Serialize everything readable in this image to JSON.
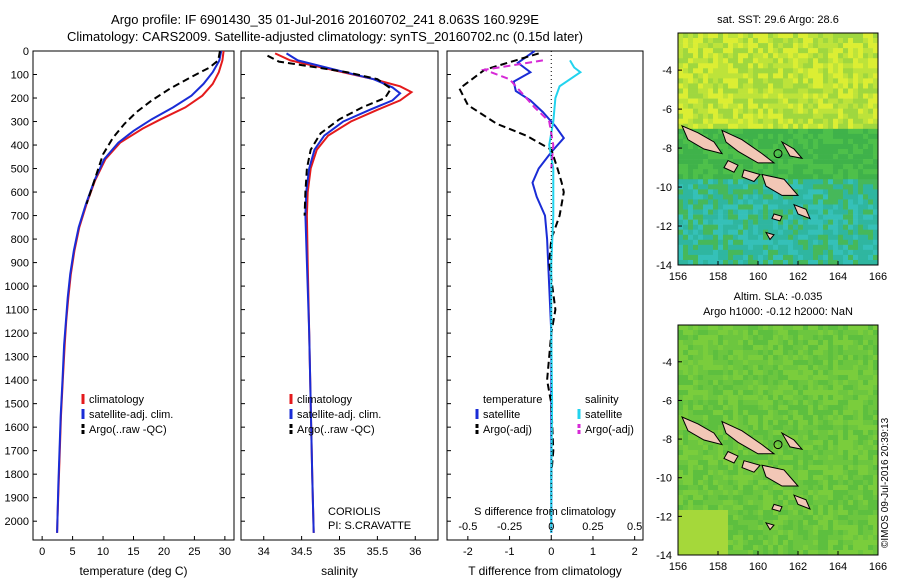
{
  "header": {
    "line1": "Argo profile: IF 6901430_35 01-Jul-2016 20160702_241 8.063S 160.929E",
    "line2": "Climatology: CARS2009. Satellite-adjusted climatology: synTS_20160702.nc (0.15d later)"
  },
  "colors": {
    "climatology": "#e41a1c",
    "satellite": "#1a2cd6",
    "argo": "#000000",
    "sal_satellite": "#22d3ee",
    "sal_argo": "#d62ad6"
  },
  "chart_data": [
    {
      "type": "line",
      "id": "temperature",
      "xlabel": "temperature (deg C)",
      "ylabel": "",
      "xlim": [
        -1.5,
        31.5
      ],
      "ylim": [
        2080,
        0
      ],
      "xticks": [
        0,
        5,
        10,
        15,
        20,
        25,
        30
      ],
      "yticks": [
        0,
        100,
        200,
        300,
        400,
        500,
        600,
        700,
        800,
        900,
        1000,
        1100,
        1200,
        1300,
        1400,
        1500,
        1600,
        1700,
        1800,
        1900,
        2000
      ],
      "legend": [
        "climatology",
        "satellite-adj. clim.",
        "Argo(..raw -QC)"
      ],
      "series": [
        {
          "name": "climatology",
          "style": "red-solid",
          "points": [
            [
              29.8,
              0
            ],
            [
              29.6,
              40
            ],
            [
              29.0,
              90
            ],
            [
              28.0,
              140
            ],
            [
              26.3,
              190
            ],
            [
              23.5,
              240
            ],
            [
              19.5,
              290
            ],
            [
              16.5,
              330
            ],
            [
              12.8,
              390
            ],
            [
              10.4,
              460
            ],
            [
              8.7,
              550
            ],
            [
              7.3,
              650
            ],
            [
              6.1,
              750
            ],
            [
              5.3,
              850
            ],
            [
              4.7,
              950
            ],
            [
              4.3,
              1050
            ],
            [
              3.95,
              1150
            ],
            [
              3.7,
              1250
            ],
            [
              3.4,
              1400
            ],
            [
              3.1,
              1550
            ],
            [
              2.9,
              1700
            ],
            [
              2.7,
              1850
            ],
            [
              2.5,
              2000
            ],
            [
              2.45,
              2050
            ]
          ]
        },
        {
          "name": "satellite-adj. clim.",
          "style": "blue-solid",
          "points": [
            [
              29.4,
              0
            ],
            [
              29.1,
              40
            ],
            [
              28.0,
              90
            ],
            [
              26.5,
              140
            ],
            [
              24.5,
              190
            ],
            [
              21.5,
              240
            ],
            [
              18.0,
              290
            ],
            [
              15.0,
              340
            ],
            [
              12.5,
              390
            ],
            [
              10.2,
              460
            ],
            [
              8.6,
              550
            ],
            [
              7.2,
              650
            ],
            [
              6.0,
              750
            ],
            [
              5.2,
              850
            ],
            [
              4.6,
              950
            ],
            [
              4.2,
              1050
            ],
            [
              3.9,
              1150
            ],
            [
              3.6,
              1250
            ],
            [
              3.35,
              1400
            ],
            [
              3.05,
              1550
            ],
            [
              2.85,
              1700
            ],
            [
              2.65,
              1850
            ],
            [
              2.5,
              2000
            ],
            [
              2.45,
              2050
            ]
          ]
        },
        {
          "name": "Argo(..raw -QC)",
          "style": "black-dashed",
          "points": [
            [
              29.2,
              0
            ],
            [
              28.9,
              40
            ],
            [
              27.5,
              70
            ],
            [
              24.5,
              110
            ],
            [
              21.0,
              160
            ],
            [
              18.0,
              210
            ],
            [
              15.5,
              260
            ],
            [
              13.5,
              310
            ],
            [
              11.6,
              370
            ],
            [
              10.0,
              440
            ],
            [
              8.6,
              550
            ],
            [
              7.3,
              650
            ]
          ]
        }
      ]
    },
    {
      "type": "line",
      "id": "salinity",
      "xlabel": "salinity",
      "xlim": [
        33.7,
        36.3
      ],
      "ylim": [
        2080,
        0
      ],
      "xticks": [
        34,
        34.5,
        35,
        35.5,
        36
      ],
      "legend": [
        "climatology",
        "satellite-adj. clim.",
        "Argo(..raw -QC)"
      ],
      "annotations": [
        "CORIOLIS",
        "PI: S.CRAVATTE"
      ],
      "series": [
        {
          "name": "climatology",
          "style": "red-solid",
          "points": [
            [
              34.15,
              10
            ],
            [
              34.35,
              40
            ],
            [
              34.9,
              80
            ],
            [
              35.45,
              120
            ],
            [
              35.8,
              150
            ],
            [
              35.95,
              175
            ],
            [
              35.8,
              210
            ],
            [
              35.5,
              250
            ],
            [
              35.15,
              300
            ],
            [
              34.85,
              360
            ],
            [
              34.7,
              420
            ],
            [
              34.62,
              500
            ],
            [
              34.58,
              600
            ],
            [
              34.57,
              700
            ],
            [
              34.58,
              900
            ],
            [
              34.6,
              1200
            ],
            [
              34.62,
              1500
            ],
            [
              34.64,
              1800
            ],
            [
              34.66,
              2050
            ]
          ]
        },
        {
          "name": "satellite-adj. clim.",
          "style": "blue-solid",
          "points": [
            [
              34.3,
              10
            ],
            [
              34.45,
              40
            ],
            [
              34.95,
              80
            ],
            [
              35.45,
              120
            ],
            [
              35.7,
              155
            ],
            [
              35.8,
              180
            ],
            [
              35.7,
              210
            ],
            [
              35.4,
              250
            ],
            [
              35.05,
              300
            ],
            [
              34.8,
              360
            ],
            [
              34.67,
              420
            ],
            [
              34.6,
              500
            ],
            [
              34.56,
              600
            ],
            [
              34.55,
              700
            ],
            [
              34.57,
              900
            ],
            [
              34.6,
              1200
            ],
            [
              34.62,
              1500
            ],
            [
              34.64,
              1800
            ],
            [
              34.66,
              2050
            ]
          ]
        },
        {
          "name": "Argo(..raw -QC)",
          "style": "black-dashed",
          "points": [
            [
              34.05,
              20
            ],
            [
              34.2,
              45
            ],
            [
              34.5,
              60
            ],
            [
              35.1,
              90
            ],
            [
              35.5,
              120
            ],
            [
              35.68,
              160
            ],
            [
              35.6,
              200
            ],
            [
              35.3,
              240
            ],
            [
              35.0,
              290
            ],
            [
              34.75,
              350
            ],
            [
              34.62,
              420
            ],
            [
              34.57,
              500
            ],
            [
              34.55,
              600
            ],
            [
              34.54,
              700
            ]
          ]
        }
      ]
    },
    {
      "type": "line",
      "id": "difference",
      "xlabel": "T difference from climatology",
      "xlabel_top": "S difference from climatology",
      "xlim": [
        -2.5,
        2.2
      ],
      "ylim": [
        2080,
        0
      ],
      "xticks": [
        -2,
        -1,
        0,
        1,
        2
      ],
      "xticks_s": [
        -0.5,
        -0.25,
        0,
        0.25,
        0.5
      ],
      "legend": [
        "temperature",
        "satellite",
        "Argo(-adj)",
        "salinity",
        "satellite",
        "Argo(-adj)"
      ],
      "series": [
        {
          "name": "temperature satellite",
          "style": "blue-solid",
          "points": [
            [
              -0.4,
              0
            ],
            [
              -0.8,
              50
            ],
            [
              -0.5,
              90
            ],
            [
              -0.9,
              130
            ],
            [
              -0.85,
              170
            ],
            [
              -0.5,
              210
            ],
            [
              -0.2,
              260
            ],
            [
              0.1,
              320
            ],
            [
              0.3,
              370
            ],
            [
              0.0,
              430
            ],
            [
              -0.3,
              500
            ],
            [
              -0.45,
              560
            ],
            [
              -0.35,
              620
            ],
            [
              -0.15,
              700
            ],
            [
              -0.1,
              800
            ],
            [
              -0.05,
              1000
            ],
            [
              0.0,
              1200
            ],
            [
              0.0,
              1500
            ],
            [
              0.0,
              1800
            ],
            [
              0.0,
              2050
            ]
          ]
        },
        {
          "name": "temperature Argo(-adj)",
          "style": "black-dashed",
          "points": [
            [
              -0.3,
              10
            ],
            [
              -1.6,
              80
            ],
            [
              -2.2,
              160
            ],
            [
              -2.0,
              230
            ],
            [
              -1.3,
              310
            ],
            [
              -0.6,
              360
            ],
            [
              0.0,
              420
            ],
            [
              0.15,
              500
            ],
            [
              0.25,
              560
            ],
            [
              0.3,
              600
            ],
            [
              0.2,
              700
            ],
            [
              0.0,
              800
            ],
            [
              -0.05,
              900
            ],
            [
              0.1,
              1100
            ],
            [
              0.0,
              1200
            ],
            [
              -0.1,
              1400
            ],
            [
              0.0,
              1500
            ],
            [
              0.05,
              1700
            ],
            [
              0.0,
              1800
            ],
            [
              0.0,
              1900
            ]
          ]
        },
        {
          "name": "salinity satellite",
          "style": "cyan-solid",
          "points": [
            [
              0.45,
              40
            ],
            [
              0.55,
              70
            ],
            [
              0.7,
              90
            ],
            [
              0.2,
              150
            ],
            [
              0.1,
              200
            ],
            [
              0.05,
              300
            ],
            [
              -0.05,
              400
            ],
            [
              0.05,
              500
            ],
            [
              0.05,
              700
            ],
            [
              0.0,
              900
            ],
            [
              0.0,
              1200
            ],
            [
              0.02,
              1500
            ],
            [
              0.0,
              1800
            ],
            [
              0.0,
              2050
            ]
          ]
        },
        {
          "name": "salinity Argo(-adj)",
          "style": "magenta-dashed",
          "points": [
            [
              -0.2,
              40
            ],
            [
              -1.6,
              80
            ],
            [
              -1.0,
              120
            ],
            [
              -0.8,
              160
            ],
            [
              -0.4,
              240
            ],
            [
              -0.05,
              300
            ],
            [
              0.05,
              400
            ],
            [
              0.0,
              500
            ]
          ]
        }
      ]
    }
  ],
  "maps": [
    {
      "title": "sat. SST: 29.6  Argo: 28.6",
      "xticks": [
        "156",
        "158",
        "160",
        "162",
        "164",
        "166"
      ],
      "yticks": [
        "-4",
        "-6",
        "-8",
        "-10",
        "-12",
        "-14"
      ]
    },
    {
      "title_line1": "Altim. SLA: -0.035",
      "title_line2": "Argo h1000: -0.12  h2000: NaN",
      "xticks": [
        "156",
        "158",
        "160",
        "162",
        "164",
        "166"
      ],
      "yticks": [
        "-4",
        "-6",
        "-8",
        "-10",
        "-12",
        "-14"
      ]
    }
  ],
  "watermark": "©IMOS 09-Jul-2016 20:39:13"
}
